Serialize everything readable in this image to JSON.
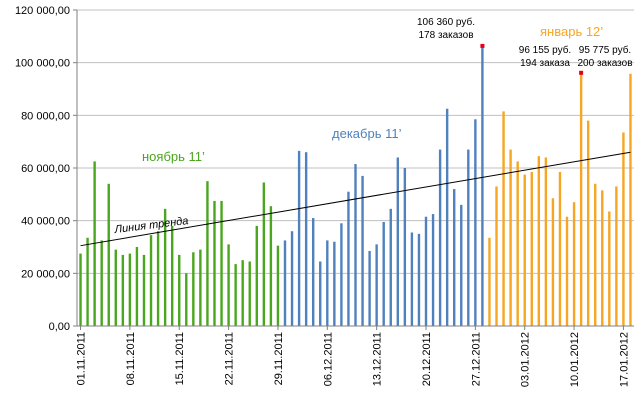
{
  "chart_data": {
    "type": "bar",
    "ylim": [
      0,
      120000
    ],
    "yticks": [
      "0,00",
      "20 000,00",
      "40 000,00",
      "60 000,00",
      "80 000,00",
      "100 000,00",
      "120 000,00"
    ],
    "grid": true,
    "xtick_labels": [
      "01.11.2011",
      "08.11.2011",
      "15.11.2011",
      "22.11.2011",
      "29.11.2011",
      "06.12.2011",
      "13.12.2011",
      "20.12.2011",
      "27.12.2011",
      "03.01.2012",
      "10.01.2012",
      "17.01.2012"
    ],
    "start_date": "01.11.2011",
    "series": [
      {
        "label": "ноябрь 11’",
        "color": "#4aa61f",
        "values": [
          27500,
          33500,
          62500,
          32500,
          54000,
          29000,
          27000,
          27500,
          30000,
          27000,
          34500,
          36000,
          44500,
          38000,
          27000,
          20000,
          28000,
          29000,
          55000,
          47500,
          47500,
          31000,
          23500,
          25000,
          24500,
          38000,
          54500,
          45500,
          30500
        ]
      },
      {
        "label": "декабрь 11’",
        "color": "#4f81bd",
        "values": [
          32500,
          36000,
          66500,
          66000,
          41000,
          24500,
          32500,
          32000,
          39000,
          51000,
          61500,
          57000,
          28500,
          31000,
          39500,
          44500,
          64000,
          60000,
          35500,
          35000,
          41500,
          42500,
          67000,
          82500,
          52000,
          46000,
          67000,
          78500,
          106360
        ]
      },
      {
        "label": "январь 12’",
        "color": "#f6a623",
        "values": [
          33500,
          53000,
          81500,
          67000,
          62500,
          57500,
          58500,
          64500,
          64000,
          48500,
          58500,
          41500,
          47000,
          96155,
          78000,
          54000,
          51500,
          43500,
          53000,
          73500,
          95775
        ]
      }
    ],
    "annotations": [
      {
        "lines": [
          "106 360 руб.",
          "178 заказов"
        ]
      },
      {
        "lines": [
          "96 155 руб.",
          "194 заказа"
        ]
      },
      {
        "lines": [
          "95 775 руб.",
          "200 заказов"
        ]
      }
    ],
    "trendline": {
      "label": "Линия тренда",
      "start": 30500,
      "end": 66000,
      "color": "#000000"
    }
  }
}
